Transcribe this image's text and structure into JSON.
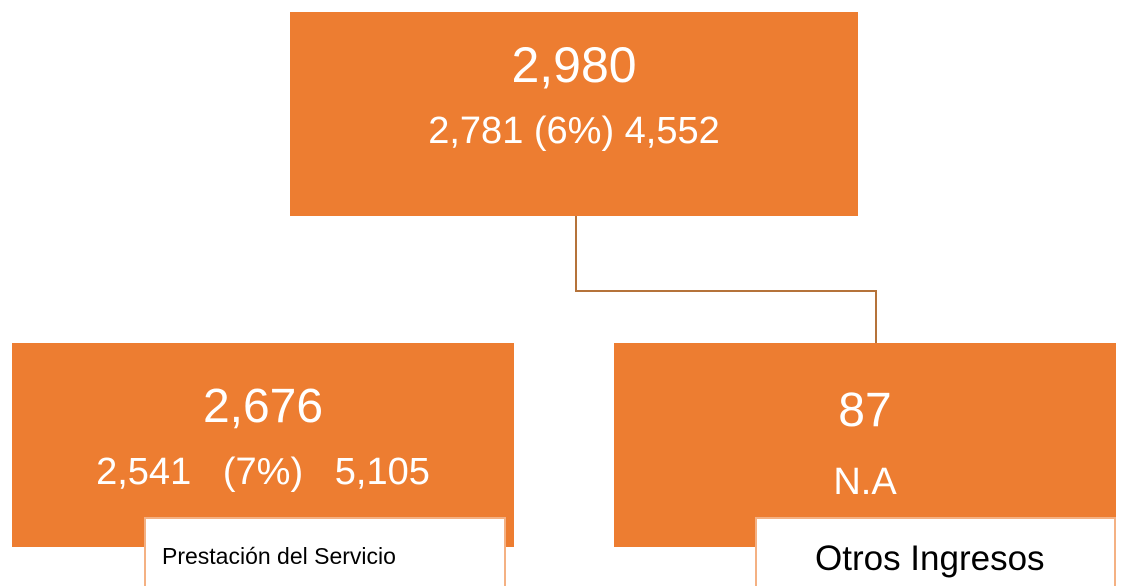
{
  "nodes": [
    {
      "value": "2,980",
      "detail": "2,781 (6%) 4,552"
    },
    {
      "value": "2,676",
      "detail": "2,541   (7%)   5,105",
      "label": "Prestación del Servicio"
    },
    {
      "value": "87",
      "detail": "N.A",
      "label": "Otros Ingresos"
    }
  ]
}
